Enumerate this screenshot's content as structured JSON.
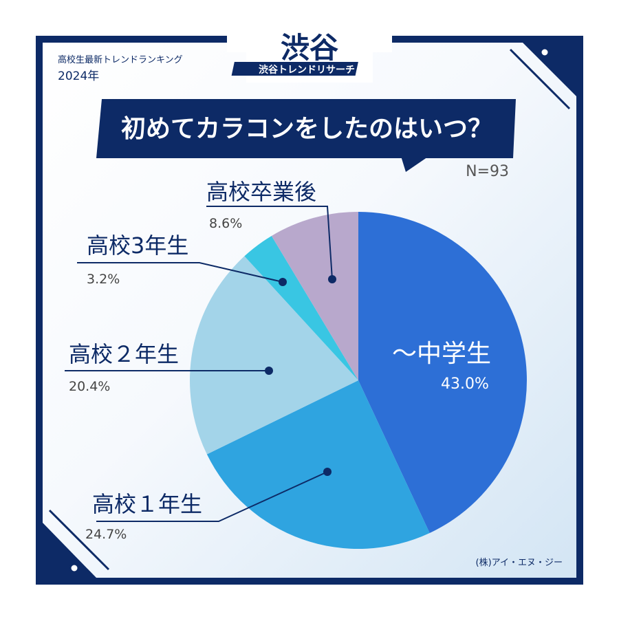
{
  "header": {
    "kicker": "高校生最新トレンドランキング",
    "year": "2024年",
    "logo_text": "渋谷トレンドリサーチ"
  },
  "question": "初めてカラコンをしたのはいつ？",
  "sample_size": "N=93",
  "credit": "(株)アイ・エヌ・ジー",
  "colors": {
    "navy": "#0d2a66",
    "slice_0": "#2d6fd6",
    "slice_1": "#2fa4e0",
    "slice_2": "#a3d4e9",
    "slice_3": "#39c6e3",
    "slice_4": "#b8a8cc"
  },
  "chart_data": {
    "type": "pie",
    "title": "初めてカラコンをしたのはいつ？",
    "start_angle": "12 o'clock",
    "direction": "clockwise",
    "slices": [
      {
        "label": "～中学生",
        "value": 43.0,
        "value_label": "43.0%"
      },
      {
        "label": "高校１年生",
        "value": 24.7,
        "value_label": "24.7%"
      },
      {
        "label": "高校２年生",
        "value": 20.4,
        "value_label": "20.4%"
      },
      {
        "label": "高校3年生",
        "value": 3.2,
        "value_label": "3.2%"
      },
      {
        "label": "高校卒業後",
        "value": 8.6,
        "value_label": "8.6%"
      }
    ]
  }
}
